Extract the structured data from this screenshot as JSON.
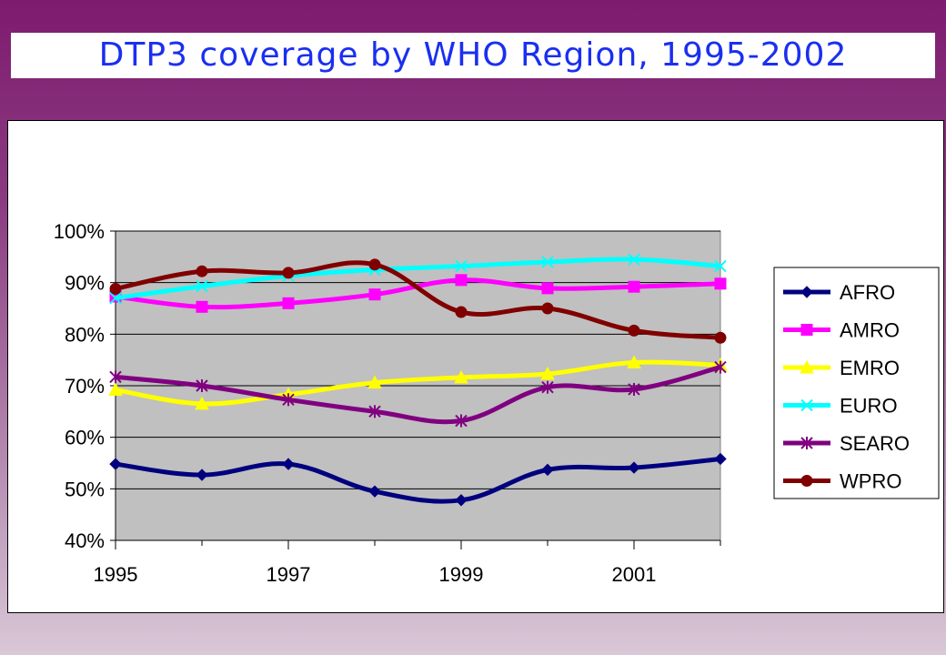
{
  "slide": {
    "title": "DTP3 coverage by WHO Region, 1995-2002"
  },
  "chart_data": {
    "type": "line",
    "title": "",
    "xlabel": "",
    "ylabel": "",
    "x": [
      1995,
      1996,
      1997,
      1998,
      1999,
      2000,
      2001,
      2002
    ],
    "x_tick_labels": [
      "1995",
      "1997",
      "1999",
      "2001"
    ],
    "y_tick_labels": [
      "40%",
      "50%",
      "60%",
      "70%",
      "80%",
      "90%",
      "100%"
    ],
    "ylim": [
      0.4,
      1.0
    ],
    "xlim": [
      1995,
      2002
    ],
    "grid": true,
    "legend_position": "right",
    "plot_background": "#c0c0c0",
    "series": [
      {
        "name": "AFRO",
        "color": "#00007f",
        "marker": "diamond",
        "values": [
          0.548,
          0.527,
          0.548,
          0.495,
          0.478,
          0.537,
          0.541,
          0.558
        ]
      },
      {
        "name": "AMRO",
        "color": "#ff00ff",
        "marker": "square",
        "values": [
          0.873,
          0.853,
          0.86,
          0.877,
          0.905,
          0.889,
          0.892,
          0.898
        ]
      },
      {
        "name": "EMRO",
        "color": "#ffff00",
        "marker": "triangle",
        "values": [
          0.692,
          0.665,
          0.683,
          0.706,
          0.716,
          0.723,
          0.745,
          0.74
        ]
      },
      {
        "name": "EURO",
        "color": "#00ffff",
        "marker": "x",
        "values": [
          0.87,
          0.893,
          0.913,
          0.925,
          0.932,
          0.94,
          0.945,
          0.932
        ]
      },
      {
        "name": "SEARO",
        "color": "#800080",
        "marker": "asterisk",
        "values": [
          0.717,
          0.7,
          0.673,
          0.65,
          0.632,
          0.697,
          0.693,
          0.736
        ]
      },
      {
        "name": "WPRO",
        "color": "#800000",
        "marker": "circle",
        "values": [
          0.888,
          0.922,
          0.919,
          0.935,
          0.843,
          0.85,
          0.807,
          0.793
        ]
      }
    ]
  }
}
